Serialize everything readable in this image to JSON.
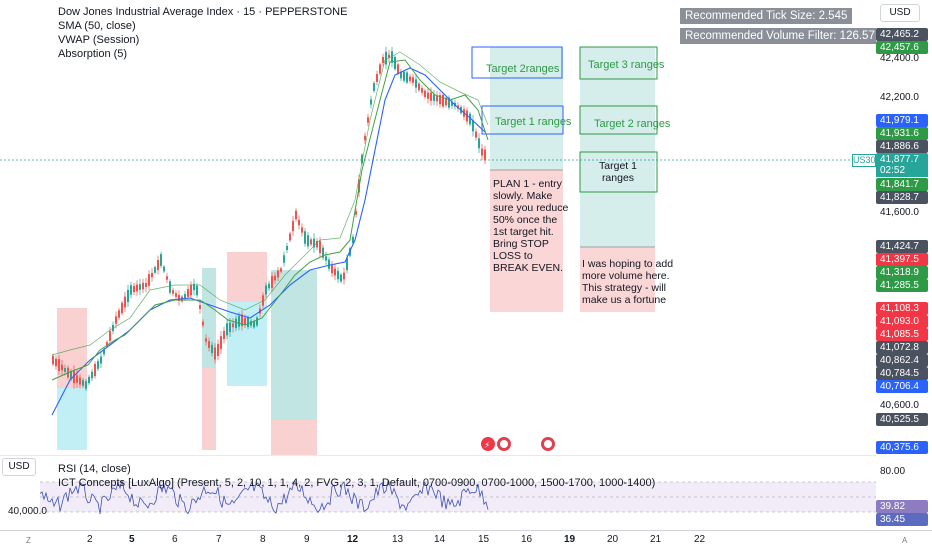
{
  "legend": {
    "title": "Dow Jones Industrial Average Index · 15 · PEPPERSTONE",
    "ind1": "SMA (50, close)",
    "ind2": "VWAP (Session)",
    "ind3": "Absorption (5)"
  },
  "recommended": {
    "tick": "Recommended Tick Size: 2.545",
    "volume": "Recommended Volume Filter: 126.57"
  },
  "currency": "USD",
  "symbol_tag": "US30",
  "countdown": "02:52",
  "price_axis": {
    "labels": [
      {
        "text": "42,465.2",
        "color": "#4a5260"
      },
      {
        "text": "42,457.6",
        "color": "#2e9a45"
      },
      {
        "text": "41,979.1",
        "color": "#2962ff"
      },
      {
        "text": "41,931.6",
        "color": "#2e9a45"
      },
      {
        "text": "41,886.6",
        "color": "#4a5260"
      },
      {
        "text": "41,877.7",
        "color": "#26a69a"
      },
      {
        "text": "41,841.7",
        "color": "#2e9a45"
      },
      {
        "text": "41,828.7",
        "color": "#4a5260"
      },
      {
        "text": "41,424.7",
        "color": "#4a5260"
      },
      {
        "text": "41,397.5",
        "color": "#f23645"
      },
      {
        "text": "41,318.9",
        "color": "#2e9a45"
      },
      {
        "text": "41,285.5",
        "color": "#2e9a45"
      },
      {
        "text": "41,108.3",
        "color": "#f23645"
      },
      {
        "text": "41,093.0",
        "color": "#f23645"
      },
      {
        "text": "41,085.5",
        "color": "#f23645"
      },
      {
        "text": "41,072.8",
        "color": "#4a5260"
      },
      {
        "text": "40,862.4",
        "color": "#4a5260"
      },
      {
        "text": "40,784.5",
        "color": "#4a5260"
      },
      {
        "text": "40,706.4",
        "color": "#2962ff"
      },
      {
        "text": "40,525.5",
        "color": "#4a5260"
      },
      {
        "text": "40,375.6",
        "color": "#2962ff"
      }
    ],
    "ticks": [
      "42,400.0",
      "42,200.0",
      "41,600.0",
      "40,600.0"
    ]
  },
  "rsi": {
    "legend1": "RSI (14, close)",
    "legend2": "ICT Concepts [LuxAlgo] (Present, 5, 2, 10, 1, 1, 4, 2, FVG, 2, 3, 1, Default, 0700-0900, 0700-1000, 1500-1700, 1000-1400)",
    "axis_80": "80.00",
    "value1": "39.82",
    "value2": "36.45",
    "left_axis": "40,000.0"
  },
  "time_axis": [
    "2",
    "5",
    "6",
    "7",
    "8",
    "9",
    "12",
    "13",
    "14",
    "15",
    "16",
    "19",
    "20",
    "21",
    "22"
  ],
  "annotations": {
    "plan": "PLAN 1 - entry slowly. Make sure you reduce 50% once the 1st target hit. Bring STOP LOSS to BREAK EVEN.",
    "hoping": "I was hoping to add more volume here. This strategy - will make us a fortune",
    "t2ranges": "Target 2ranges",
    "t1ranges_a": "Target 1 ranges",
    "t3ranges": "Target 3 ranges",
    "t2ranges_b": "Target 2 ranges",
    "t1ranges_b": "Target 1 ranges"
  },
  "colors": {
    "bull": "#26a69a",
    "bear": "#ef5350",
    "sma": "#2962ff",
    "vwap": "#43a047"
  }
}
